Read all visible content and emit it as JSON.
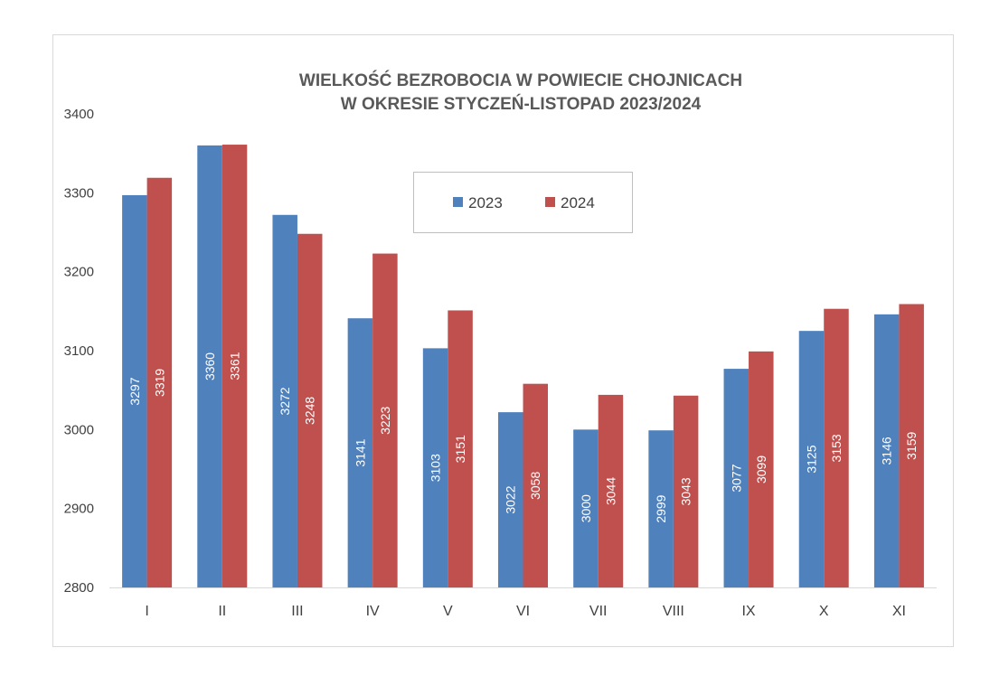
{
  "chart_data": {
    "type": "bar",
    "title": [
      "WIELKOŚĆ BEZROBOCIA W POWIECIE CHOJNICACH",
      "W OKRESIE STYCZEŃ-LISTOPAD 2023/2024"
    ],
    "xlabel": "",
    "ylabel": "",
    "ylim": [
      2800,
      3400
    ],
    "yticks": [
      "2800",
      "2900",
      "3000",
      "3100",
      "3200",
      "3300",
      "3400"
    ],
    "categories": [
      "I",
      "II",
      "III",
      "IV",
      "V",
      "VI",
      "VII",
      "VIII",
      "IX",
      "X",
      "XI"
    ],
    "series": [
      {
        "name": "2023",
        "color": "#4f81bd",
        "values": [
          3297,
          3360,
          3272,
          3141,
          3103,
          3022,
          3000,
          2999,
          3077,
          3125,
          3146
        ]
      },
      {
        "name": "2024",
        "color": "#c0504d",
        "values": [
          3319,
          3361,
          3248,
          3223,
          3151,
          3058,
          3044,
          3043,
          3099,
          3153,
          3159
        ]
      }
    ],
    "grid": false,
    "legend_position": "top-center",
    "data_labels": "inside-rotated"
  }
}
